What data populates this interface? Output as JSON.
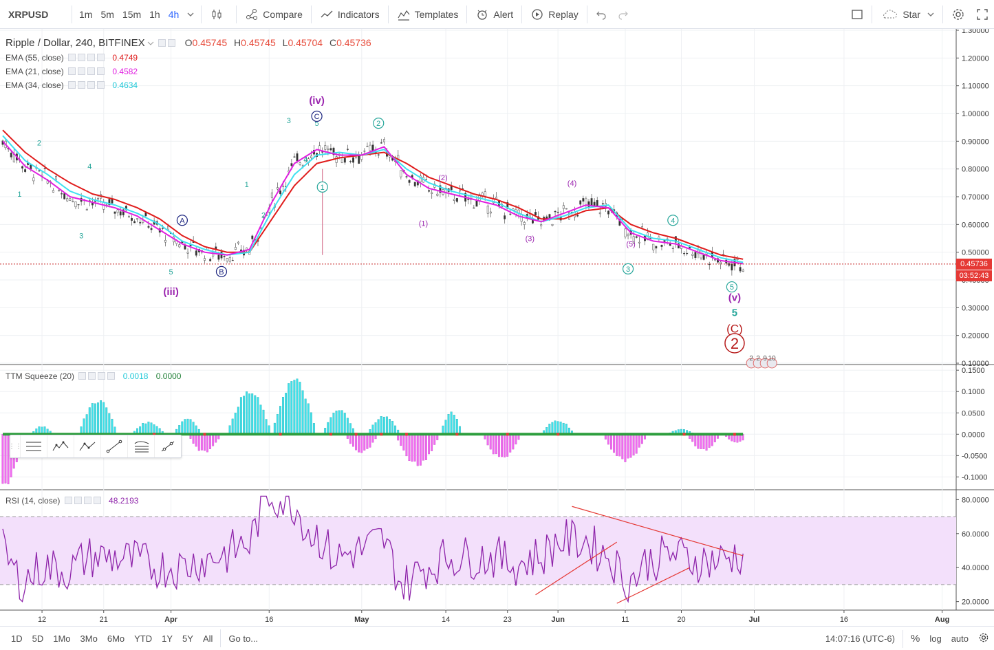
{
  "toolbar": {
    "symbol": "XRPUSD",
    "intervals": [
      "1m",
      "5m",
      "15m",
      "1h",
      "4h"
    ],
    "active_interval": "4h",
    "compare_label": "Compare",
    "indicators_label": "Indicators",
    "templates_label": "Templates",
    "alert_label": "Alert",
    "replay_label": "Replay",
    "star_label": "Star"
  },
  "main_legend": {
    "title": "Ripple / Dollar, 240, BITFINEX",
    "open_key": "O",
    "open": "0.45745",
    "high_key": "H",
    "high": "0.45745",
    "low_key": "L",
    "low": "0.45704",
    "close_key": "C",
    "close": "0.45736",
    "ema55_label": "EMA (55, close)",
    "ema55_value": "0.4749",
    "ema21_label": "EMA (21, close)",
    "ema21_value": "0.4582",
    "ema34_label": "EMA (34, close)",
    "ema34_value": "0.4634"
  },
  "ttm_legend": {
    "label": "TTM Squeeze (20)",
    "value1": "0.0018",
    "value2": "0.0000"
  },
  "rsi_legend": {
    "label": "RSI (14, close)",
    "value": "48.2193"
  },
  "price_badge": {
    "last": "0.45736",
    "countdown": "03:52:43"
  },
  "colors": {
    "ema55": "#e01b1b",
    "ema21": "#e020e0",
    "ema34": "#3ee0f0",
    "wave_purple": "#9c27b0",
    "wave_teal": "#26a69a",
    "wave_navy": "#1a237e",
    "rsi_line": "#8e24aa",
    "rsi_band": "#f3e0fb",
    "squeeze_pos": "#40e0e8",
    "squeeze_neg": "#f06cf0"
  },
  "chart_data": [
    {
      "type": "line",
      "name_panel": "price",
      "ylim": [
        0.1,
        1.3
      ],
      "y_ticks": [
        "1.30000",
        "1.20000",
        "1.10000",
        "1.00000",
        "0.90000",
        "0.80000",
        "0.70000",
        "0.60000",
        "0.50000",
        "0.40000",
        "0.30000",
        "0.20000",
        "0.10000"
      ],
      "y_tick_values": [
        1.3,
        1.2,
        1.1,
        1.0,
        0.9,
        0.8,
        0.7,
        0.6,
        0.5,
        0.4,
        0.3,
        0.2,
        0.1
      ],
      "x_ticks": [
        "12",
        "21",
        "Apr",
        "16",
        "May",
        "14",
        "23",
        "Jun",
        "11",
        "20",
        "Jul",
        "16",
        "Aug"
      ],
      "x_tick_index": [
        14,
        36,
        60,
        95,
        128,
        158,
        180,
        198,
        222,
        242,
        268,
        300,
        335
      ],
      "last_price": 0.45736,
      "series": [
        {
          "name": "EMA (55, close)",
          "key": "ema55",
          "x": [
            0,
            8,
            16,
            24,
            32,
            40,
            48,
            56,
            64,
            72,
            80,
            88,
            96,
            104,
            112,
            120,
            128,
            136,
            144,
            152,
            160,
            168,
            176,
            184,
            192,
            200,
            208,
            216,
            224,
            232,
            240,
            248,
            256,
            264
          ],
          "y": [
            0.94,
            0.86,
            0.8,
            0.75,
            0.71,
            0.69,
            0.66,
            0.62,
            0.56,
            0.52,
            0.5,
            0.5,
            0.62,
            0.74,
            0.82,
            0.84,
            0.85,
            0.86,
            0.82,
            0.77,
            0.74,
            0.71,
            0.69,
            0.66,
            0.62,
            0.62,
            0.65,
            0.66,
            0.6,
            0.57,
            0.55,
            0.52,
            0.49,
            0.4749
          ]
        },
        {
          "name": "EMA (34, close)",
          "key": "ema34",
          "x": [
            0,
            8,
            16,
            24,
            32,
            40,
            48,
            56,
            64,
            72,
            80,
            88,
            96,
            104,
            112,
            120,
            128,
            136,
            144,
            152,
            160,
            168,
            176,
            184,
            192,
            200,
            208,
            216,
            224,
            232,
            240,
            248,
            256,
            264
          ],
          "y": [
            0.92,
            0.83,
            0.78,
            0.72,
            0.69,
            0.67,
            0.64,
            0.6,
            0.54,
            0.51,
            0.49,
            0.5,
            0.65,
            0.78,
            0.85,
            0.86,
            0.85,
            0.87,
            0.8,
            0.75,
            0.72,
            0.7,
            0.68,
            0.64,
            0.61,
            0.63,
            0.66,
            0.67,
            0.58,
            0.55,
            0.54,
            0.51,
            0.48,
            0.4634
          ]
        },
        {
          "name": "EMA (21, close)",
          "key": "ema21",
          "x": [
            0,
            8,
            16,
            24,
            32,
            40,
            48,
            56,
            64,
            72,
            80,
            88,
            96,
            104,
            112,
            120,
            128,
            136,
            144,
            152,
            160,
            168,
            176,
            184,
            192,
            200,
            208,
            216,
            224,
            232,
            240,
            248,
            256,
            264
          ],
          "y": [
            0.9,
            0.81,
            0.76,
            0.7,
            0.68,
            0.66,
            0.63,
            0.58,
            0.53,
            0.5,
            0.49,
            0.51,
            0.68,
            0.82,
            0.87,
            0.85,
            0.85,
            0.88,
            0.78,
            0.73,
            0.71,
            0.69,
            0.67,
            0.63,
            0.61,
            0.64,
            0.67,
            0.66,
            0.57,
            0.54,
            0.53,
            0.5,
            0.47,
            0.4582
          ]
        }
      ],
      "annotations": [
        {
          "text": "(iv)",
          "i": 112,
          "y": 1.035,
          "color": "purple",
          "bold": true
        },
        {
          "text": "(iii)",
          "i": 60,
          "y": 0.345,
          "color": "purple",
          "bold": true
        },
        {
          "text": "(v)",
          "i": 261,
          "y": 0.325,
          "color": "purple",
          "bold": true
        },
        {
          "text": "1",
          "i": 6,
          "y": 0.7,
          "color": "teal"
        },
        {
          "text": "2",
          "i": 13,
          "y": 0.885,
          "color": "teal"
        },
        {
          "text": "3",
          "i": 28,
          "y": 0.55,
          "color": "teal"
        },
        {
          "text": "4",
          "i": 31,
          "y": 0.8,
          "color": "teal"
        },
        {
          "text": "5",
          "i": 60,
          "y": 0.42,
          "color": "teal"
        },
        {
          "text": "1",
          "i": 87,
          "y": 0.735,
          "color": "teal"
        },
        {
          "text": "2",
          "i": 93,
          "y": 0.625,
          "color": "teal"
        },
        {
          "text": "3",
          "i": 102,
          "y": 0.965,
          "color": "teal"
        },
        {
          "text": "4",
          "i": 108,
          "y": 0.825,
          "color": "teal"
        },
        {
          "text": "5",
          "i": 112,
          "y": 0.955,
          "color": "teal"
        },
        {
          "text": "(1)",
          "i": 150,
          "y": 0.595,
          "color": "purple"
        },
        {
          "text": "(2)",
          "i": 157,
          "y": 0.76,
          "color": "purple"
        },
        {
          "text": "(3)",
          "i": 188,
          "y": 0.54,
          "color": "purple"
        },
        {
          "text": "(4)",
          "i": 203,
          "y": 0.74,
          "color": "purple"
        },
        {
          "text": "(5)",
          "i": 224,
          "y": 0.52,
          "color": "purple"
        },
        {
          "text": "5",
          "i": 261,
          "y": 0.27,
          "color": "teal",
          "bold": true
        }
      ],
      "circled_labels": [
        {
          "text": "A",
          "i": 64,
          "y": 0.615,
          "color": "navy"
        },
        {
          "text": "B",
          "i": 78,
          "y": 0.43,
          "color": "navy"
        },
        {
          "text": "C",
          "i": 112,
          "y": 0.99,
          "color": "navy"
        },
        {
          "text": "1",
          "i": 114,
          "y": 0.735,
          "color": "teal"
        },
        {
          "text": "2",
          "i": 134,
          "y": 0.965,
          "color": "teal"
        },
        {
          "text": "3",
          "i": 223,
          "y": 0.44,
          "color": "teal"
        },
        {
          "text": "4",
          "i": 239,
          "y": 0.615,
          "color": "teal"
        },
        {
          "text": "5",
          "i": 260,
          "y": 0.375,
          "color": "teal"
        }
      ],
      "big_labels": [
        {
          "text": "(C)",
          "i": 261,
          "y": 0.225,
          "color": "#b71c1c"
        },
        {
          "text": "2",
          "i": 261,
          "y": 0.172,
          "color": "#b71c1c"
        }
      ],
      "events": [
        "2",
        "2",
        "9",
        "10"
      ]
    },
    {
      "type": "bar",
      "name_panel": "ttm_squeeze",
      "ylim": [
        -0.13,
        0.16
      ],
      "y_ticks": [
        "0.1500",
        "0.1000",
        "0.0500",
        "0.0000",
        "-0.0500",
        "-0.1000"
      ],
      "y_tick_values": [
        0.15,
        0.1,
        0.05,
        0.0,
        -0.05,
        -0.1
      ],
      "bursts": [
        {
          "center": 1,
          "width": 6,
          "peak": -0.12
        },
        {
          "center": 14,
          "width": 3,
          "peak": 0.02
        },
        {
          "center": 34,
          "width": 6,
          "peak": 0.085
        },
        {
          "center": 52,
          "width": 5,
          "peak": 0.03
        },
        {
          "center": 66,
          "width": 4,
          "peak": 0.04
        },
        {
          "center": 72,
          "width": 5,
          "peak": -0.045
        },
        {
          "center": 88,
          "width": 7,
          "peak": 0.105
        },
        {
          "center": 104,
          "width": 7,
          "peak": 0.135
        },
        {
          "center": 120,
          "width": 5,
          "peak": 0.06
        },
        {
          "center": 128,
          "width": 5,
          "peak": -0.045
        },
        {
          "center": 136,
          "width": 5,
          "peak": 0.045
        },
        {
          "center": 148,
          "width": 7,
          "peak": -0.075
        },
        {
          "center": 160,
          "width": 3,
          "peak": 0.055
        },
        {
          "center": 178,
          "width": 6,
          "peak": -0.06
        },
        {
          "center": 198,
          "width": 5,
          "peak": 0.035
        },
        {
          "center": 222,
          "width": 7,
          "peak": -0.065
        },
        {
          "center": 242,
          "width": 4,
          "peak": 0.012
        },
        {
          "center": 250,
          "width": 5,
          "peak": -0.04
        },
        {
          "center": 262,
          "width": 4,
          "peak": -0.02
        }
      ]
    },
    {
      "type": "line",
      "name_panel": "rsi",
      "ylim": [
        15,
        85
      ],
      "y_ticks": [
        "80.0000",
        "60.0000",
        "40.0000",
        "20.0000"
      ],
      "y_tick_values": [
        80,
        60,
        40,
        20
      ],
      "band": [
        30,
        70
      ],
      "last_value": 48.2193,
      "trend_lines": [
        {
          "x1": 203,
          "y1": 76,
          "x2": 264,
          "y2": 47
        },
        {
          "x1": 190,
          "y1": 24,
          "x2": 219,
          "y2": 55
        },
        {
          "x1": 219,
          "y1": 19,
          "x2": 245,
          "y2": 40
        }
      ]
    }
  ],
  "bottombar": {
    "ranges": [
      "1D",
      "5D",
      "1Mo",
      "3Mo",
      "6Mo",
      "YTD",
      "1Y",
      "5Y",
      "All"
    ],
    "goto_label": "Go to...",
    "clock": "14:07:16 (UTC-6)",
    "percent_label": "%",
    "log_label": "log",
    "auto_label": "auto"
  }
}
